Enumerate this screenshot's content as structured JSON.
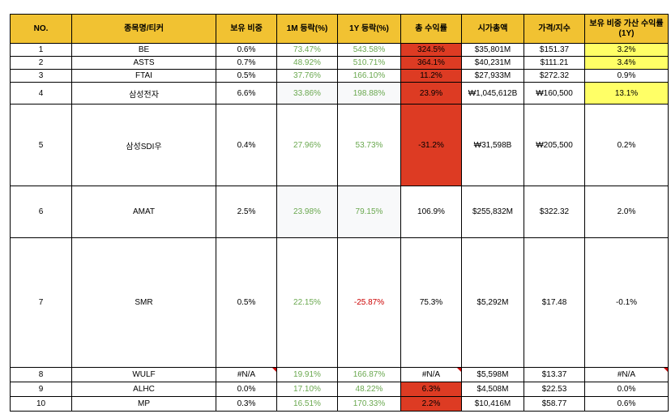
{
  "headers": [
    "NO.",
    "종목명/티커",
    "보유 비중",
    "1M 등락(%)",
    "1Y 등락(%)",
    "총 수익률",
    "시가총액",
    "가격/지수",
    "보유 비중 가산 수익률\n(1Y)"
  ],
  "rows": [
    {
      "no": "1",
      "name": "BE",
      "weight": "0.6%",
      "m1": "73.47%",
      "y1": "543.58%",
      "total": "324.5%",
      "cap": "$35,801M",
      "price": "$151.37",
      "contrib": "3.2%"
    },
    {
      "no": "2",
      "name": "ASTS",
      "weight": "0.7%",
      "m1": "48.92%",
      "y1": "510.71%",
      "total": "364.1%",
      "cap": "$40,231M",
      "price": "$111.21",
      "contrib": "3.4%"
    },
    {
      "no": "3",
      "name": "FTAI",
      "weight": "0.5%",
      "m1": "37.76%",
      "y1": "166.10%",
      "total": "11.2%",
      "cap": "$27,933M",
      "price": "$272.32",
      "contrib": "0.9%"
    },
    {
      "no": "4",
      "name": "삼성전자",
      "weight": "6.6%",
      "m1": "33.86%",
      "y1": "198.88%",
      "total": "23.9%",
      "cap": "₩1,045,612B",
      "price": "₩160,500",
      "contrib": "13.1%"
    },
    {
      "no": "5",
      "name": "삼성SDI우",
      "weight": "0.4%",
      "m1": "27.96%",
      "y1": "53.73%",
      "total": "-31.2%",
      "cap": "₩31,598B",
      "price": "₩205,500",
      "contrib": "0.2%"
    },
    {
      "no": "6",
      "name": "AMAT",
      "weight": "2.5%",
      "m1": "23.98%",
      "y1": "79.15%",
      "total": "106.9%",
      "cap": "$255,832M",
      "price": "$322.32",
      "contrib": "2.0%"
    },
    {
      "no": "7",
      "name": "SMR",
      "weight": "0.5%",
      "m1": "22.15%",
      "y1": "-25.87%",
      "total": "75.3%",
      "cap": "$5,292M",
      "price": "$17.48",
      "contrib": "-0.1%"
    },
    {
      "no": "8",
      "name": "WULF",
      "weight": "#N/A",
      "m1": "19.91%",
      "y1": "166.87%",
      "total": "#N/A",
      "cap": "$5,598M",
      "price": "$13.37",
      "contrib": "#N/A"
    },
    {
      "no": "9",
      "name": "ALHC",
      "weight": "0.0%",
      "m1": "17.10%",
      "y1": "48.22%",
      "total": "6.3%",
      "cap": "$4,508M",
      "price": "$22.53",
      "contrib": "0.0%"
    },
    {
      "no": "10",
      "name": "MP",
      "weight": "0.3%",
      "m1": "16.51%",
      "y1": "170.33%",
      "total": "2.2%",
      "cap": "$10,416M",
      "price": "$58.77",
      "contrib": "0.6%"
    }
  ],
  "colors": {
    "header": "#f1c232",
    "positive": "#6aa84f",
    "negative": "#cc0000",
    "highlight_red": "#dd3b23",
    "highlight_yellow": "#ffff66"
  }
}
